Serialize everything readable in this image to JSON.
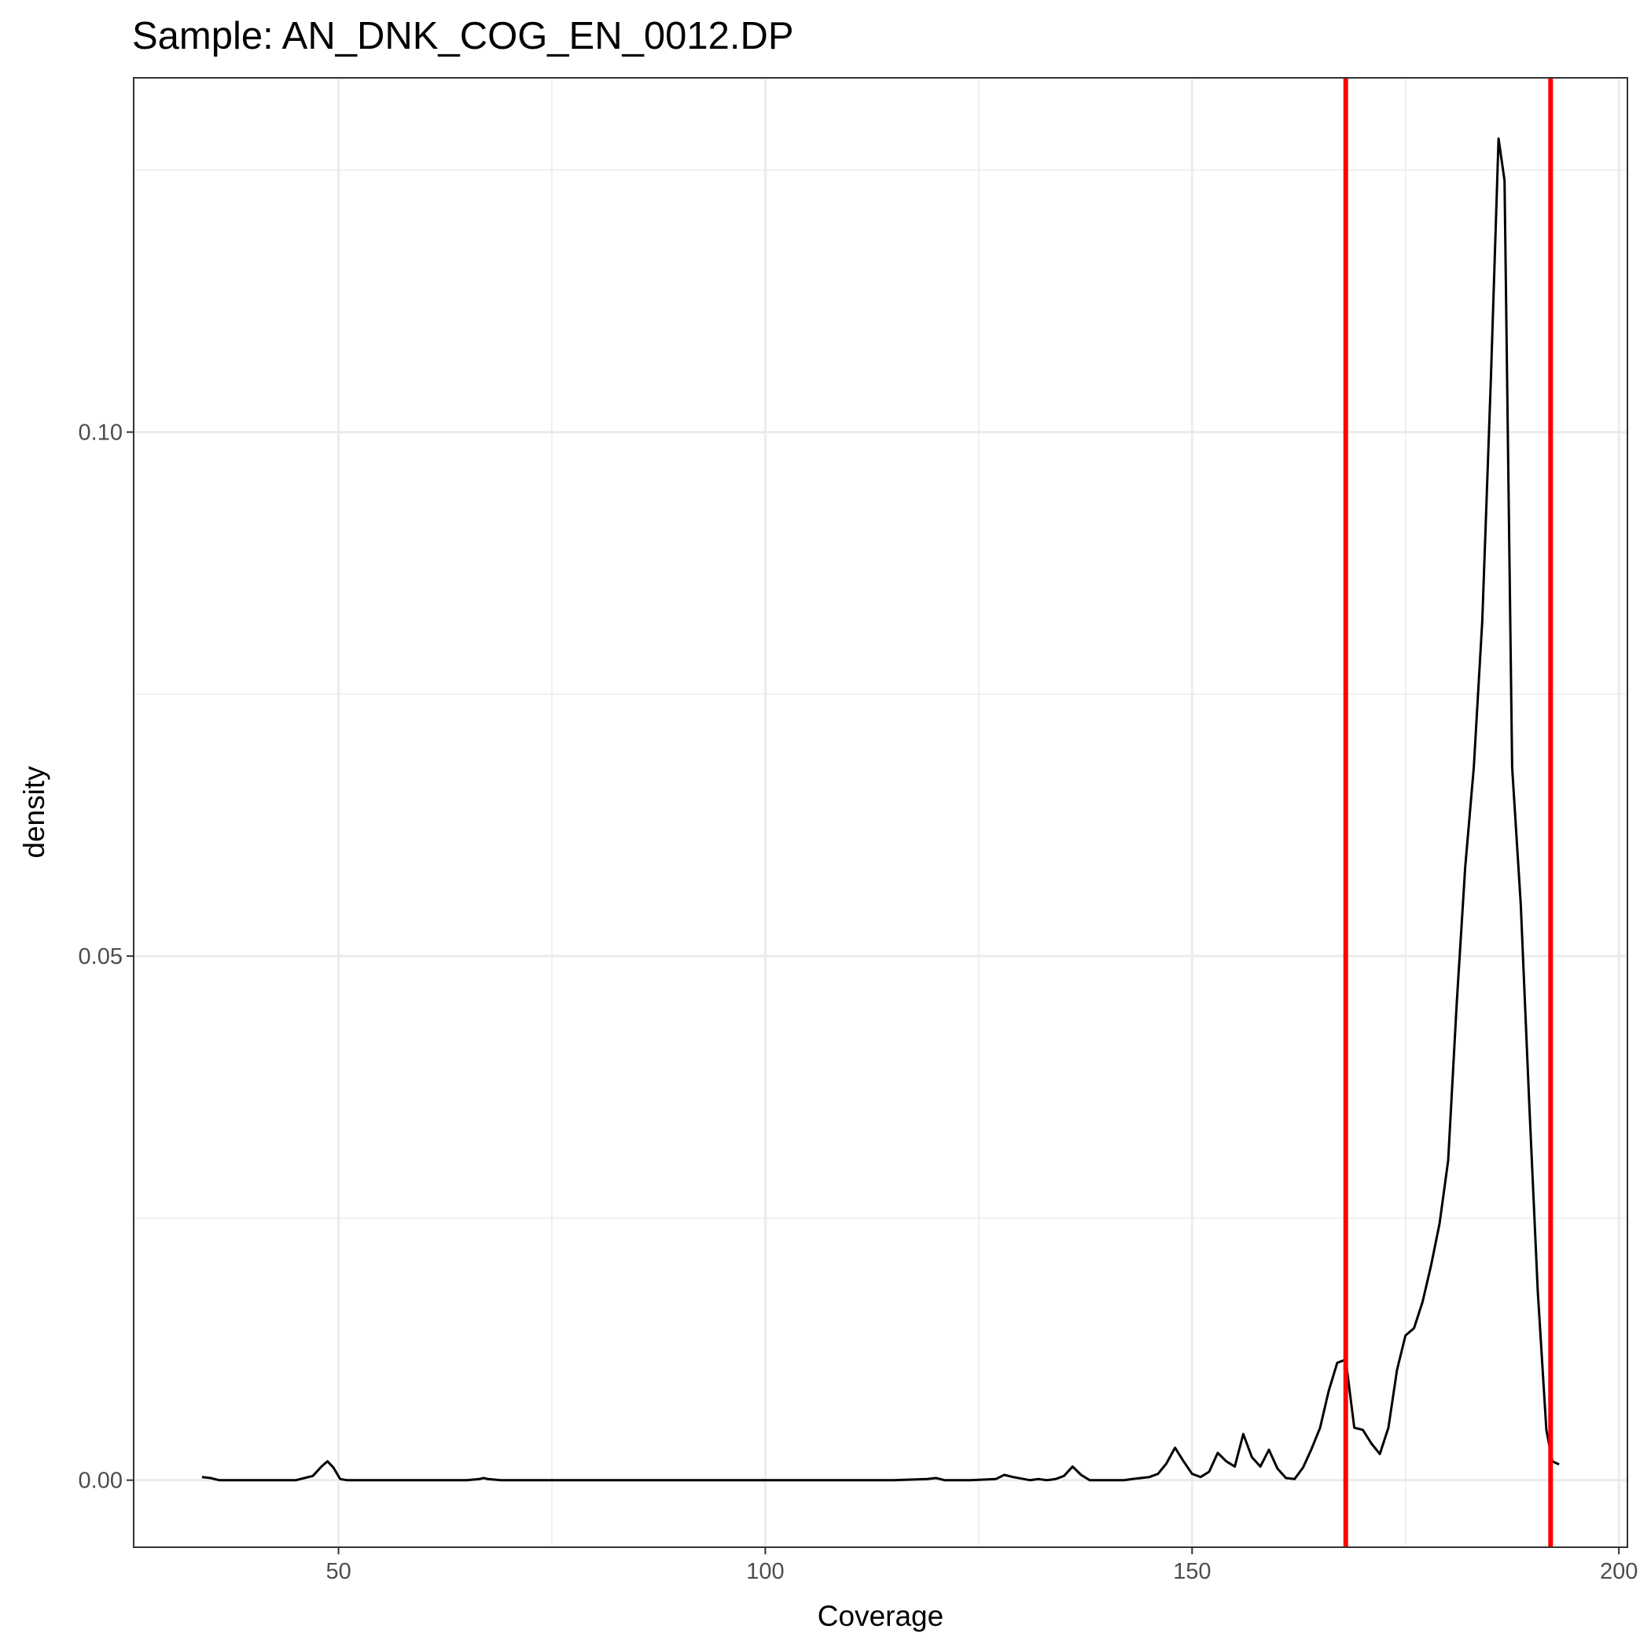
{
  "chart_data": {
    "type": "line",
    "title": "Sample: AN_DNK_COG_EN_0012.DP",
    "xlabel": "Coverage",
    "ylabel": "density",
    "xlim": [
      26,
      201
    ],
    "ylim": [
      -0.0064,
      0.1338
    ],
    "x_ticks": [
      50,
      100,
      150,
      200
    ],
    "x_tick_labels": [
      "50",
      "100",
      "150",
      "200"
    ],
    "y_ticks": [
      0.0,
      0.05,
      0.1
    ],
    "y_tick_labels": [
      "0.00",
      "0.05",
      "0.10"
    ],
    "grid": true,
    "legend": "none",
    "series": [
      {
        "color": "#000000",
        "x": [
          34,
          35,
          36,
          37,
          40,
          45,
          47,
          48,
          48.7,
          49.4,
          50.2,
          51,
          55,
          60,
          65,
          66.5,
          67,
          67.5,
          69,
          80,
          100,
          115,
          119,
          120,
          121,
          124,
          127,
          128,
          129,
          131,
          132,
          133,
          134,
          135,
          136,
          137,
          138,
          140,
          142,
          143,
          144,
          145,
          146,
          147,
          148,
          149,
          150,
          151,
          152,
          153,
          154,
          155,
          156,
          157,
          158,
          159,
          160,
          161,
          162,
          163,
          164,
          165,
          166,
          167,
          168,
          169,
          170,
          171,
          172,
          173,
          174,
          175,
          176,
          177,
          178,
          179,
          180,
          181,
          182,
          183,
          184,
          185,
          185.9,
          186.6,
          187.5,
          188.5,
          189.5,
          190.5,
          191.5,
          192.2,
          193
        ],
        "y": [
          0.0003,
          0.0002,
          0.0,
          0.0,
          0.0,
          0.0,
          0.0004,
          0.0013,
          0.0018,
          0.0012,
          0.0001,
          0.0,
          0.0,
          0.0,
          0.0,
          0.0001,
          0.0002,
          0.0001,
          0.0,
          0.0,
          0.0,
          0.0,
          0.0001,
          0.0002,
          0.0,
          0.0,
          0.0001,
          0.0005,
          0.0003,
          0.0,
          0.0001,
          0.0,
          0.0001,
          0.0004,
          0.0013,
          0.0005,
          0.0,
          0.0,
          0.0,
          0.0001,
          0.0002,
          0.0003,
          0.0006,
          0.0016,
          0.0031,
          0.0018,
          0.0006,
          0.0003,
          0.0008,
          0.0026,
          0.0018,
          0.0013,
          0.0044,
          0.0022,
          0.0013,
          0.0029,
          0.0011,
          0.0002,
          0.0001,
          0.0012,
          0.003,
          0.005,
          0.0085,
          0.0112,
          0.0115,
          0.005,
          0.0048,
          0.0035,
          0.0025,
          0.005,
          0.0105,
          0.0138,
          0.0145,
          0.017,
          0.0205,
          0.0245,
          0.0305,
          0.0455,
          0.0585,
          0.068,
          0.082,
          0.105,
          0.128,
          0.124,
          0.068,
          0.055,
          0.036,
          0.018,
          0.0048,
          0.0018,
          0.0015
        ]
      }
    ],
    "vlines": {
      "color": "#ff0000",
      "x": [
        168,
        192
      ]
    }
  }
}
